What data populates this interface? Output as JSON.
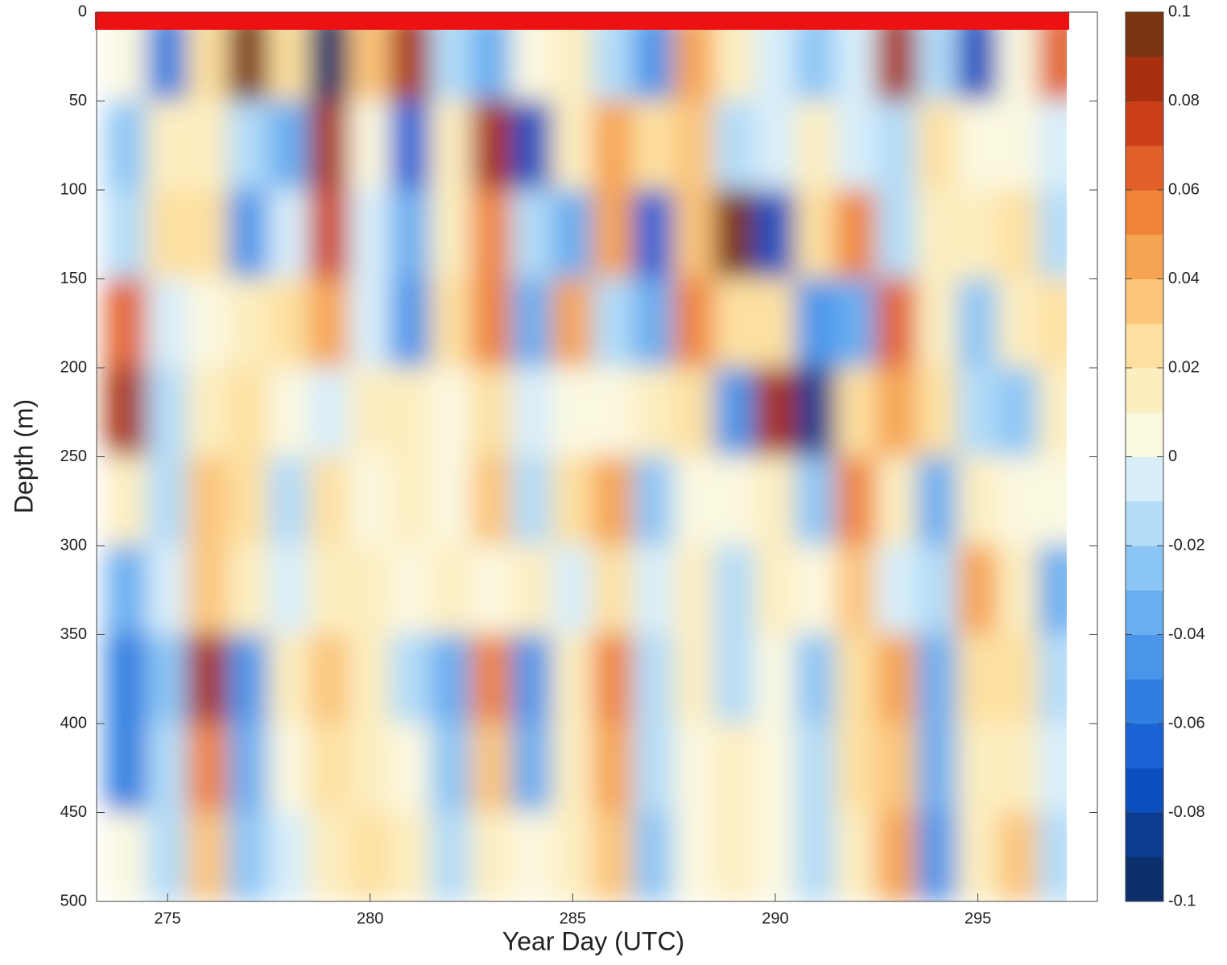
{
  "chart_data": {
    "type": "contour",
    "xlabel": "Year Day (UTC)",
    "ylabel": "Depth (m)",
    "x": [
      274,
      275,
      276,
      277,
      278,
      279,
      280,
      281,
      282,
      283,
      284,
      285,
      286,
      287,
      288,
      289,
      290,
      291,
      292,
      293,
      294,
      295,
      296,
      297
    ],
    "y": [
      25,
      75,
      125,
      175,
      225,
      275,
      325,
      375,
      425,
      475
    ],
    "z": [
      [
        0,
        -0.06,
        0.02,
        0.09,
        0.02,
        -0.1,
        0.03,
        0.08,
        -0.02,
        -0.04,
        0,
        0.01,
        -0.02,
        -0.05,
        0.04,
        0.01,
        -0.01,
        -0.03,
        -0.01,
        0.08,
        -0.02,
        -0.08,
        0,
        0.06
      ],
      [
        -0.03,
        0.01,
        0.01,
        -0.02,
        -0.04,
        0.08,
        0,
        -0.07,
        0.01,
        0.08,
        -0.08,
        0.01,
        0.04,
        0.02,
        0.03,
        -0.02,
        -0.01,
        0.01,
        -0.01,
        -0.02,
        0.02,
        0,
        0,
        -0.01
      ],
      [
        -0.02,
        0.02,
        0.02,
        -0.05,
        -0.01,
        0.07,
        -0.01,
        -0.04,
        0.01,
        0.05,
        -0.02,
        -0.04,
        0.04,
        -0.07,
        0.03,
        0.09,
        -0.08,
        0.02,
        0.05,
        -0.02,
        0.01,
        0.01,
        0.02,
        -0.02
      ],
      [
        0.06,
        -0.01,
        0,
        0.01,
        0.02,
        0.04,
        -0.01,
        -0.05,
        0.02,
        0.05,
        -0.04,
        0.04,
        -0.02,
        -0.04,
        0.05,
        0.02,
        0.02,
        -0.05,
        -0.04,
        0.06,
        0.01,
        -0.03,
        0.01,
        0.02
      ],
      [
        0.08,
        -0.02,
        0.01,
        0.02,
        0,
        -0.01,
        0.01,
        0.01,
        0,
        0.02,
        -0.01,
        0,
        0,
        0.01,
        0.02,
        -0.05,
        0.08,
        -0.09,
        0.02,
        0.04,
        0.02,
        -0.02,
        -0.03,
        0.01
      ],
      [
        0.01,
        -0.02,
        0.03,
        0.02,
        -0.02,
        0.02,
        0,
        0.01,
        0,
        0.03,
        -0.02,
        0.02,
        0.04,
        -0.03,
        0,
        0,
        0.01,
        -0.03,
        0.05,
        0.01,
        -0.04,
        0.01,
        0,
        0
      ],
      [
        -0.04,
        -0.01,
        0.03,
        0.01,
        -0.01,
        0.01,
        0.01,
        0,
        0.01,
        0,
        0.01,
        -0.01,
        0.02,
        -0.01,
        0.01,
        -0.02,
        0.01,
        0,
        0.03,
        -0.01,
        -0.02,
        0.04,
        0.01,
        -0.04
      ],
      [
        -0.06,
        -0.03,
        0.08,
        -0.05,
        0.01,
        0.03,
        0.01,
        -0.02,
        -0.04,
        0.05,
        -0.05,
        0.01,
        0.05,
        -0.02,
        0.01,
        -0.02,
        0,
        -0.03,
        0.02,
        0.04,
        -0.04,
        0.02,
        0.02,
        -0.02
      ],
      [
        -0.06,
        -0.02,
        0.05,
        -0.04,
        0,
        0.02,
        0.01,
        0,
        -0.03,
        0.03,
        -0.04,
        0.01,
        0.04,
        -0.02,
        0,
        0.01,
        0,
        -0.02,
        0.02,
        0.03,
        -0.04,
        0.01,
        0.01,
        -0.01
      ],
      [
        0,
        -0.02,
        0.03,
        -0.03,
        -0.01,
        0.01,
        0.02,
        0.01,
        -0.02,
        0.01,
        0,
        0.01,
        0.03,
        -0.03,
        0,
        0.01,
        0,
        -0.02,
        0.01,
        0.04,
        -0.05,
        0.01,
        0.03,
        -0.02
      ]
    ],
    "xlim": [
      273.25,
      297.95
    ],
    "ylim": [
      0,
      500
    ],
    "y_reversed": true,
    "xticks": [
      275,
      280,
      285,
      290,
      295
    ],
    "yticks": [
      0,
      50,
      100,
      150,
      200,
      250,
      300,
      350,
      400,
      450,
      500
    ],
    "colorbar": {
      "lim": [
        -0.1,
        0.1
      ],
      "ticks": [
        0.1,
        0.08,
        0.06,
        0.04,
        0.02,
        0,
        -0.02,
        -0.04,
        -0.06,
        -0.08,
        -0.1
      ],
      "colors": [
        "#0d2f6b",
        "#0a3d8f",
        "#0b4fbf",
        "#1a62d6",
        "#2f7ee0",
        "#4a96ea",
        "#69aef0",
        "#8cc6f5",
        "#b2dcf8",
        "#d8eefa",
        "#fbf8e0",
        "#fdeec0",
        "#fde0a0",
        "#fbc57a",
        "#f6a451",
        "#ef8438",
        "#e2602a",
        "#cc4019",
        "#a8300f",
        "#7a3410"
      ]
    }
  }
}
